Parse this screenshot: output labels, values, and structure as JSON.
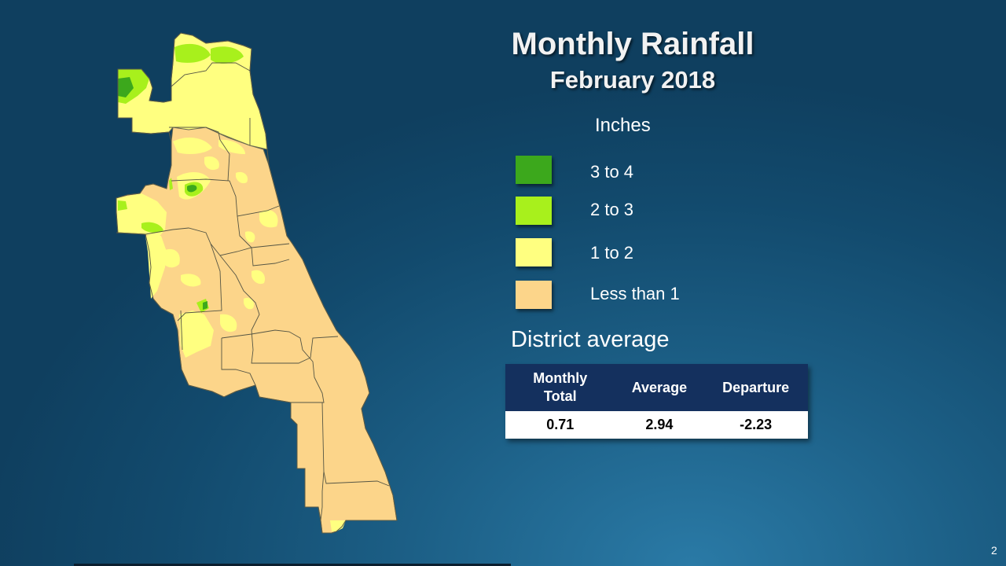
{
  "title": "Monthly Rainfall",
  "subtitle": "February 2018",
  "legend": {
    "title": "Inches",
    "items": [
      {
        "label": "3 to 4",
        "color": "#3ca81c"
      },
      {
        "label": "2 to 3",
        "color": "#a8f01c"
      },
      {
        "label": "1 to 2",
        "color": "#ffff80"
      },
      {
        "label": "Less than 1",
        "color": "#fcd58a"
      }
    ]
  },
  "district": {
    "heading": "District average",
    "columns": [
      "Monthly Total",
      "Average",
      "Departure"
    ],
    "values": [
      "0.71",
      "2.94",
      "-2.23"
    ]
  },
  "page_number": "2"
}
